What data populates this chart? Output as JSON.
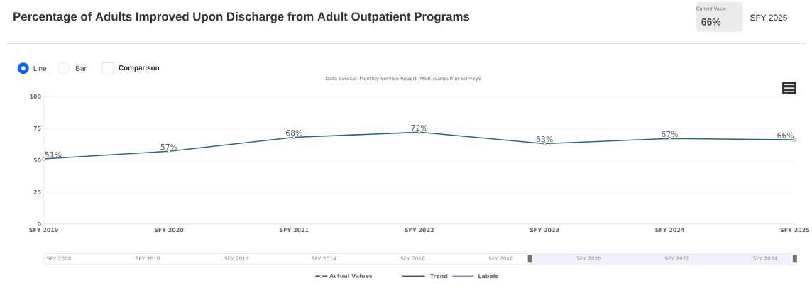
{
  "chart_data": {
    "type": "line",
    "title": "Percentage of Adults Improved Upon Discharge from Adult Outpatient Programs",
    "categories": [
      "SFY 2019",
      "SFY 2020",
      "SFY 2021",
      "SFY 2022",
      "SFY 2023",
      "SFY 2024",
      "SFY 2025"
    ],
    "series": [
      {
        "name": "Actual Values",
        "color": "#2b6587",
        "values": [
          51,
          57,
          68,
          72,
          63,
          67,
          66
        ],
        "value_labels": [
          "51%",
          "57%",
          "68%",
          "72%",
          "63%",
          "67%",
          "66%"
        ]
      }
    ],
    "ylim": [
      0,
      100
    ],
    "yticks": [
      0,
      25,
      50,
      75,
      100
    ],
    "grid": "y",
    "marker": "circle",
    "legend": "bottom",
    "annotations": [
      "Data Source: Monthly Service Report (MSR)/Consumer Surveys",
      "Current Value",
      "66%",
      "SFY 2025",
      "Line",
      "Bar",
      "Comparison",
      "Trend",
      "Labels",
      "SFY 2008",
      "SFY 2010",
      "SFY 2012",
      "SFY 2014",
      "SFY 2016",
      "SFY 2018",
      "SFY 2020",
      "SFY 2022",
      "SFY 2024"
    ]
  }
}
